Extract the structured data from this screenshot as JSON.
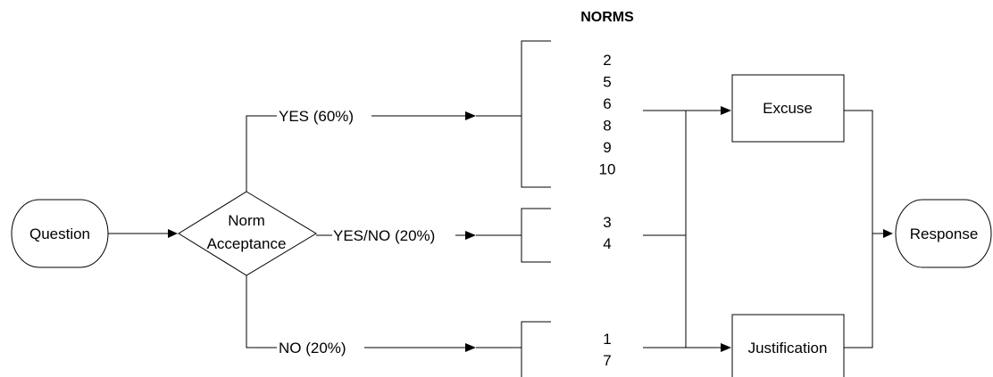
{
  "title": "NORMS",
  "nodes": {
    "question": "Question",
    "decision_line1": "Norm",
    "decision_line2": "Acceptance",
    "excuse": "Excuse",
    "justification": "Justification",
    "response": "Response"
  },
  "branches": {
    "yes": "YES (60%)",
    "yes_no": "YES/NO (20%)",
    "no": "NO (20%)"
  },
  "norm_groups": {
    "yes": [
      "2",
      "5",
      "6",
      "8",
      "9",
      "10"
    ],
    "yes_no": [
      "3",
      "4"
    ],
    "no": [
      "1",
      "7"
    ]
  }
}
